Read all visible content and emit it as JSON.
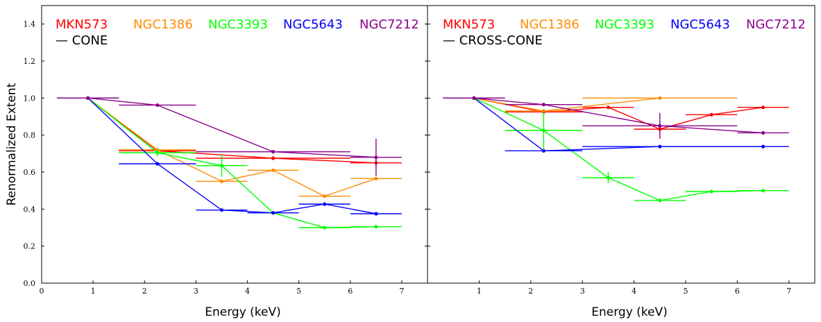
{
  "chart_data": {
    "type": "line",
    "ylabel": "Renormalized Extent",
    "shared_y": {
      "ylim": [
        0,
        1.5
      ],
      "ticks": [
        "0.0",
        "0.2",
        "0.4",
        "0.6",
        "0.8",
        "1.0",
        "1.2",
        "1.4"
      ],
      "tick_values": [
        0,
        0.2,
        0.4,
        0.6,
        0.8,
        1.0,
        1.2,
        1.4
      ]
    },
    "panels": [
      {
        "id": "cone",
        "xlabel": "Energy (keV)",
        "xlim": [
          0,
          7.5
        ],
        "xticks": [
          "0",
          "1",
          "2",
          "3",
          "4",
          "5",
          "6",
          "7"
        ],
        "xtick_values": [
          0,
          1,
          2,
          3,
          4,
          5,
          6,
          7
        ],
        "annotation": "— CONE",
        "series": [
          {
            "name": "MKN573",
            "color": "#ff0000",
            "points": [
              {
                "x": 0.9,
                "y": 1.0,
                "xerr": [
                  0.6,
                  0.6
                ],
                "yerr": 0
              },
              {
                "x": 2.25,
                "y": 0.715,
                "xerr": [
                  0.75,
                  0.75
                ],
                "yerr": 0
              },
              {
                "x": 4.5,
                "y": 0.675,
                "xerr": [
                  1.5,
                  1.5
                ],
                "yerr": 0
              },
              {
                "x": 6.5,
                "y": 0.65,
                "xerr": [
                  0.5,
                  0.5
                ],
                "yerr": 0.02
              }
            ]
          },
          {
            "name": "NGC1386",
            "color": "#ff8c00",
            "points": [
              {
                "x": 0.9,
                "y": 1.0,
                "xerr": [
                  0.6,
                  0.6
                ],
                "yerr": 0
              },
              {
                "x": 2.25,
                "y": 0.72,
                "xerr": [
                  0.75,
                  0.75
                ],
                "yerr": 0
              },
              {
                "x": 3.5,
                "y": 0.55,
                "xerr": [
                  0.5,
                  0.5
                ],
                "yerr": 0
              },
              {
                "x": 4.5,
                "y": 0.61,
                "xerr": [
                  0.5,
                  0.5
                ],
                "yerr": 0
              },
              {
                "x": 5.5,
                "y": 0.47,
                "xerr": [
                  0.5,
                  0.5
                ],
                "yerr": 0
              },
              {
                "x": 6.5,
                "y": 0.565,
                "xerr": [
                  0.5,
                  0.5
                ],
                "yerr": 0
              }
            ]
          },
          {
            "name": "NGC3393",
            "color": "#00ff00",
            "points": [
              {
                "x": 0.9,
                "y": 1.0,
                "xerr": [
                  0.6,
                  0.6
                ],
                "yerr": 0
              },
              {
                "x": 2.25,
                "y": 0.705,
                "xerr": [
                  0.75,
                  0.75
                ],
                "yerr": 0.02
              },
              {
                "x": 3.5,
                "y": 0.635,
                "xerr": [
                  0.5,
                  0.5
                ],
                "yerr": 0.06
              },
              {
                "x": 4.5,
                "y": 0.38,
                "xerr": [
                  0.5,
                  0.5
                ],
                "yerr": 0
              },
              {
                "x": 5.5,
                "y": 0.3,
                "xerr": [
                  0.5,
                  0.5
                ],
                "yerr": 0
              },
              {
                "x": 6.5,
                "y": 0.305,
                "xerr": [
                  0.5,
                  0.5
                ],
                "yerr": 0
              }
            ]
          },
          {
            "name": "NGC5643",
            "color": "#0000ff",
            "points": [
              {
                "x": 0.9,
                "y": 1.0,
                "xerr": [
                  0.6,
                  0.6
                ],
                "yerr": 0
              },
              {
                "x": 2.25,
                "y": 0.645,
                "xerr": [
                  0.75,
                  0.75
                ],
                "yerr": 0
              },
              {
                "x": 3.5,
                "y": 0.395,
                "xerr": [
                  0.5,
                  0.5
                ],
                "yerr": 0
              },
              {
                "x": 4.5,
                "y": 0.38,
                "xerr": [
                  0.5,
                  0.5
                ],
                "yerr": 0
              },
              {
                "x": 5.5,
                "y": 0.427,
                "xerr": [
                  0.5,
                  0.5
                ],
                "yerr": 0
              },
              {
                "x": 6.5,
                "y": 0.375,
                "xerr": [
                  0.5,
                  0.5
                ],
                "yerr": 0
              }
            ]
          },
          {
            "name": "NGC7212",
            "color": "#8b008b",
            "points": [
              {
                "x": 0.9,
                "y": 1.0,
                "xerr": [
                  0.6,
                  0.6
                ],
                "yerr": 0
              },
              {
                "x": 2.25,
                "y": 0.962,
                "xerr": [
                  0.75,
                  0.75
                ],
                "yerr": 0
              },
              {
                "x": 4.5,
                "y": 0.71,
                "xerr": [
                  1.5,
                  1.5
                ],
                "yerr": 0
              },
              {
                "x": 6.5,
                "y": 0.68,
                "xerr": [
                  0.5,
                  0.5
                ],
                "yerr": 0.1
              }
            ]
          }
        ]
      },
      {
        "id": "cross-cone",
        "xlabel": "Energy (keV)",
        "xlim": [
          0,
          7.5
        ],
        "xticks": [
          "1",
          "2",
          "3",
          "4",
          "5",
          "6",
          "7"
        ],
        "xtick_values": [
          1,
          2,
          3,
          4,
          5,
          6,
          7
        ],
        "annotation": "— CROSS-CONE",
        "series": [
          {
            "name": "MKN573",
            "color": "#ff0000",
            "points": [
              {
                "x": 0.9,
                "y": 1.0,
                "xerr": [
                  0.6,
                  0.6
                ],
                "yerr": 0
              },
              {
                "x": 2.25,
                "y": 0.925,
                "xerr": [
                  0.75,
                  0.75
                ],
                "yerr": 0
              },
              {
                "x": 3.5,
                "y": 0.95,
                "xerr": [
                  0.5,
                  0.5
                ],
                "yerr": 0
              },
              {
                "x": 4.5,
                "y": 0.832,
                "xerr": [
                  0.5,
                  0.5
                ],
                "yerr": 0.02
              },
              {
                "x": 5.5,
                "y": 0.91,
                "xerr": [
                  0.5,
                  0.5
                ],
                "yerr": 0
              },
              {
                "x": 6.5,
                "y": 0.95,
                "xerr": [
                  0.5,
                  0.5
                ],
                "yerr": 0
              }
            ]
          },
          {
            "name": "NGC1386",
            "color": "#ff8c00",
            "points": [
              {
                "x": 0.9,
                "y": 1.0,
                "xerr": [
                  0.6,
                  0.6
                ],
                "yerr": 0
              },
              {
                "x": 2.25,
                "y": 0.93,
                "xerr": [
                  0.75,
                  0.75
                ],
                "yerr": 0
              },
              {
                "x": 4.5,
                "y": 1.0,
                "xerr": [
                  1.5,
                  1.5
                ],
                "yerr": 0
              }
            ]
          },
          {
            "name": "NGC3393",
            "color": "#00ff00",
            "points": [
              {
                "x": 0.9,
                "y": 1.0,
                "xerr": [
                  0.6,
                  0.6
                ],
                "yerr": 0
              },
              {
                "x": 2.25,
                "y": 0.825,
                "xerr": [
                  0.75,
                  0.75
                ],
                "yerr": 0.1
              },
              {
                "x": 3.5,
                "y": 0.57,
                "xerr": [
                  0.5,
                  0.5
                ],
                "yerr": 0.03
              },
              {
                "x": 4.5,
                "y": 0.447,
                "xerr": [
                  0.5,
                  0.5
                ],
                "yerr": 0
              },
              {
                "x": 5.5,
                "y": 0.495,
                "xerr": [
                  0.5,
                  0.5
                ],
                "yerr": 0
              },
              {
                "x": 6.5,
                "y": 0.5,
                "xerr": [
                  0.5,
                  0.5
                ],
                "yerr": 0
              }
            ]
          },
          {
            "name": "NGC5643",
            "color": "#0000ff",
            "points": [
              {
                "x": 0.9,
                "y": 1.0,
                "xerr": [
                  0.6,
                  0.6
                ],
                "yerr": 0
              },
              {
                "x": 2.25,
                "y": 0.715,
                "xerr": [
                  0.75,
                  0.75
                ],
                "yerr": 0
              },
              {
                "x": 4.5,
                "y": 0.738,
                "xerr": [
                  1.5,
                  1.5
                ],
                "yerr": 0
              },
              {
                "x": 6.5,
                "y": 0.738,
                "xerr": [
                  0.5,
                  0.5
                ],
                "yerr": 0
              }
            ]
          },
          {
            "name": "NGC7212",
            "color": "#8b008b",
            "points": [
              {
                "x": 0.9,
                "y": 1.0,
                "xerr": [
                  0.6,
                  0.6
                ],
                "yerr": 0
              },
              {
                "x": 2.25,
                "y": 0.965,
                "xerr": [
                  0.75,
                  0.75
                ],
                "yerr": 0
              },
              {
                "x": 4.5,
                "y": 0.85,
                "xerr": [
                  1.5,
                  1.5
                ],
                "yerr": 0.07
              },
              {
                "x": 6.5,
                "y": 0.812,
                "xerr": [
                  0.5,
                  0.5
                ],
                "yerr": 0
              }
            ]
          }
        ]
      }
    ]
  }
}
